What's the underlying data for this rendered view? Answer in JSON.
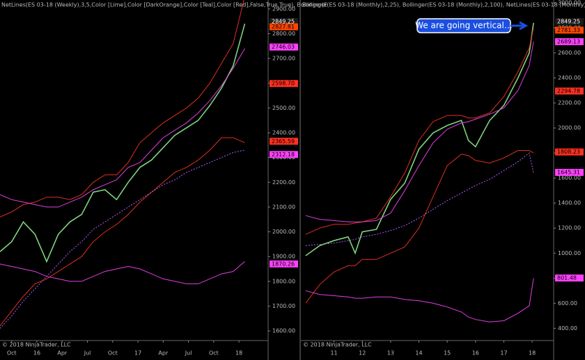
{
  "chart_data": [
    {
      "type": "line",
      "title": "NetLines(ES 03-18 (Weekly),3,5,Color [Lime],Color [DarkOrange],Color [Teal],Color [Red],False,True,True), Bollinger(E",
      "copyright": "© 2018 NinjaTrader, LLC",
      "x": [
        -6,
        0,
        6,
        12,
        18,
        24,
        30,
        36,
        42,
        48,
        54,
        60,
        66,
        72,
        78,
        84,
        90,
        96,
        102,
        108,
        114,
        120
      ],
      "xlim": [
        -6,
        132
      ],
      "xticks": [
        {
          "value": 0,
          "label": "Oct"
        },
        {
          "value": 13,
          "label": "16"
        },
        {
          "value": 26,
          "label": "Apr"
        },
        {
          "value": 39,
          "label": "Jul"
        },
        {
          "value": 52,
          "label": "Oct"
        },
        {
          "value": 65,
          "label": "17"
        },
        {
          "value": 78,
          "label": "Apr"
        },
        {
          "value": 91,
          "label": "Jul"
        },
        {
          "value": 104,
          "label": "Oct"
        },
        {
          "value": 117,
          "label": "18"
        }
      ],
      "ylim": [
        1561,
        2936
      ],
      "yticks": [
        {
          "value": 1600,
          "label": "1600.00"
        },
        {
          "value": 1700,
          "label": "1700.00"
        },
        {
          "value": 1800,
          "label": "1800.00"
        },
        {
          "value": 1900,
          "label": "1900.00"
        },
        {
          "value": 2000,
          "label": "2000.00"
        },
        {
          "value": 2100,
          "label": "2100.00"
        },
        {
          "value": 2200,
          "label": "2200.00"
        },
        {
          "value": 2300,
          "label": "2300.00"
        },
        {
          "value": 2400,
          "label": "2400.00"
        },
        {
          "value": 2500,
          "label": "2500.00"
        },
        {
          "value": 2600,
          "label": "2600.00"
        },
        {
          "value": 2700,
          "label": "2700.00"
        },
        {
          "value": 2800,
          "label": "2800.00"
        },
        {
          "value": 2900,
          "label": "2900.00"
        }
      ],
      "series": [
        {
          "name": "Close",
          "color": "#7fd37f",
          "dashed": false,
          "values": [
            1920,
            1960,
            2040,
            1990,
            1880,
            1990,
            2040,
            2070,
            2160,
            2170,
            2130,
            2200,
            2260,
            2290,
            2340,
            2390,
            2420,
            2450,
            2510,
            2580,
            2670,
            2840
          ]
        },
        {
          "name": "Bollinger upper",
          "color": "#e03020",
          "dashed": false,
          "values": [
            2060,
            2080,
            2110,
            2120,
            2140,
            2140,
            2130,
            2150,
            2200,
            2230,
            2230,
            2280,
            2360,
            2400,
            2440,
            2470,
            2500,
            2540,
            2600,
            2680,
            2760,
            2950
          ]
        },
        {
          "name": "Bollinger lower",
          "color": "#e03020",
          "dashed": false,
          "values": [
            1620,
            1680,
            1740,
            1790,
            1810,
            1840,
            1870,
            1900,
            1960,
            2000,
            2030,
            2070,
            2120,
            2160,
            2200,
            2240,
            2260,
            2290,
            2330,
            2380,
            2380,
            2360
          ]
        },
        {
          "name": "Bollinger 100 upper",
          "color": "#e040e0",
          "dashed": false,
          "values": [
            2150,
            2130,
            2120,
            2110,
            2100,
            2100,
            2120,
            2140,
            2170,
            2190,
            2210,
            2260,
            2280,
            2330,
            2380,
            2410,
            2440,
            2480,
            2530,
            2590,
            2660,
            2740
          ]
        },
        {
          "name": "Bollinger 100 lower",
          "color": "#e040e0",
          "dashed": false,
          "values": [
            1870,
            1860,
            1850,
            1840,
            1820,
            1810,
            1800,
            1800,
            1820,
            1840,
            1850,
            1860,
            1850,
            1830,
            1810,
            1800,
            1790,
            1790,
            1810,
            1830,
            1840,
            1880
          ]
        },
        {
          "name": "Bollinger 100 mid",
          "color": "#b060ff",
          "dashed": true,
          "values": [
            1610,
            1660,
            1720,
            1770,
            1820,
            1870,
            1920,
            1960,
            2010,
            2040,
            2070,
            2100,
            2130,
            2160,
            2190,
            2210,
            2240,
            2260,
            2280,
            2300,
            2320,
            2330
          ]
        }
      ],
      "price_labels": [
        {
          "value": 2849.25,
          "color": "#1a1a1a"
        },
        {
          "value": 2827.81,
          "color": "#ff4500"
        },
        {
          "value": 2746.03,
          "color": "#ff40ff"
        },
        {
          "value": {
            "value": 2598.7,
            "label": "2598.70"
          },
          "color": "#ff3020"
        },
        {
          "value": 2365.59,
          "color": "#ff3020"
        },
        {
          "value": 2312.18,
          "color": "#ff40ff"
        },
        {
          "value": 1870.26,
          "color": "#ff40ff"
        }
      ]
    },
    {
      "type": "line",
      "title": "Bollinger(ES 03-18 (Monthly),2,25), Bollinger(ES 03-18 (Monthly),2,100), NetLines(ES 03-18 (Monthly),3,5,Col",
      "copyright": "© 2018 NinjaTrader, LLC",
      "annotation": "We are going vertical…",
      "x": [
        2010,
        2010.5,
        2011,
        2011.5,
        2011.75,
        2012,
        2012.5,
        2013,
        2013.5,
        2014,
        2014.5,
        2015,
        2015.5,
        2015.75,
        2016,
        2016.5,
        2017,
        2017.5,
        2017.9,
        2018.05
      ],
      "xlim": [
        2009.83,
        2018.76
      ],
      "xticks": [
        {
          "value": 2011,
          "label": "11"
        },
        {
          "value": 2012,
          "label": "12"
        },
        {
          "value": 2013,
          "label": "13"
        },
        {
          "value": 2014,
          "label": "14"
        },
        {
          "value": 2015,
          "label": "15"
        },
        {
          "value": 2016,
          "label": "16"
        },
        {
          "value": 2017,
          "label": "17"
        },
        {
          "value": 2018,
          "label": "18"
        }
      ],
      "ylim": [
        302,
        3022
      ],
      "yticks": [
        {
          "value": 400,
          "label": "400.00"
        },
        {
          "value": 600,
          "label": "600.00"
        },
        {
          "value": 800,
          "label": "800.00"
        },
        {
          "value": 1000,
          "label": "1000.00"
        },
        {
          "value": 1200,
          "label": "1200.00"
        },
        {
          "value": 1400,
          "label": "1400.00"
        },
        {
          "value": 1600,
          "label": "1600.00"
        },
        {
          "value": 1800,
          "label": "1800.00"
        },
        {
          "value": 2000,
          "label": "2000.00"
        },
        {
          "value": 2200,
          "label": "2200.00"
        },
        {
          "value": 2400,
          "label": "2400.00"
        },
        {
          "value": 2600,
          "label": "2600.00"
        },
        {
          "value": 2800,
          "label": "2800.00"
        },
        {
          "value": 3000,
          "label": "3000.00"
        }
      ],
      "series": [
        {
          "name": "Close",
          "color": "#7fd37f",
          "dashed": false,
          "values": [
            980,
            1060,
            1100,
            1130,
            1000,
            1170,
            1190,
            1430,
            1560,
            1830,
            1960,
            2020,
            2060,
            1900,
            1850,
            2060,
            2180,
            2400,
            2600,
            2840
          ]
        },
        {
          "name": "Bollinger upper",
          "color": "#e03020",
          "dashed": false,
          "values": [
            1150,
            1200,
            1230,
            1230,
            1240,
            1250,
            1280,
            1450,
            1640,
            1900,
            2050,
            2100,
            2100,
            2080,
            2080,
            2120,
            2250,
            2450,
            2640,
            2800
          ]
        },
        {
          "name": "Bollinger lower",
          "color": "#e03020",
          "dashed": false,
          "values": [
            600,
            750,
            850,
            900,
            900,
            950,
            950,
            1000,
            1050,
            1200,
            1450,
            1700,
            1790,
            1780,
            1740,
            1720,
            1760,
            1820,
            1820,
            1800
          ]
        },
        {
          "name": "Bollinger 100 upper",
          "color": "#e040e0",
          "dashed": false,
          "values": [
            1300,
            1270,
            1260,
            1250,
            1250,
            1250,
            1260,
            1320,
            1500,
            1700,
            1880,
            1990,
            2040,
            2050,
            2070,
            2110,
            2160,
            2300,
            2500,
            2690
          ]
        },
        {
          "name": "Bollinger 100 lower",
          "color": "#e040e0",
          "dashed": false,
          "values": [
            700,
            670,
            660,
            650,
            640,
            640,
            650,
            650,
            630,
            620,
            600,
            570,
            530,
            490,
            470,
            450,
            460,
            520,
            580,
            800
          ]
        },
        {
          "name": "Bollinger 100 mid",
          "color": "#b060ff",
          "dashed": true,
          "values": [
            1060,
            1070,
            1080,
            1100,
            1110,
            1130,
            1150,
            1180,
            1220,
            1280,
            1350,
            1420,
            1480,
            1510,
            1540,
            1590,
            1660,
            1730,
            1800,
            1640
          ]
        }
      ],
      "price_labels": [
        {
          "value": 2849.25,
          "color": "#1a1a1a"
        },
        {
          "value": 2781.33,
          "color": "#ff4500"
        },
        {
          "value": 2689.13,
          "color": "#ff40ff"
        },
        {
          "value": 2294.78,
          "color": "#ff3020"
        },
        {
          "value": 1808.23,
          "color": "#ff3020"
        },
        {
          "value": 1645.31,
          "color": "#ff40ff"
        },
        {
          "value": 801.48,
          "color": "#ff40ff"
        }
      ]
    }
  ]
}
